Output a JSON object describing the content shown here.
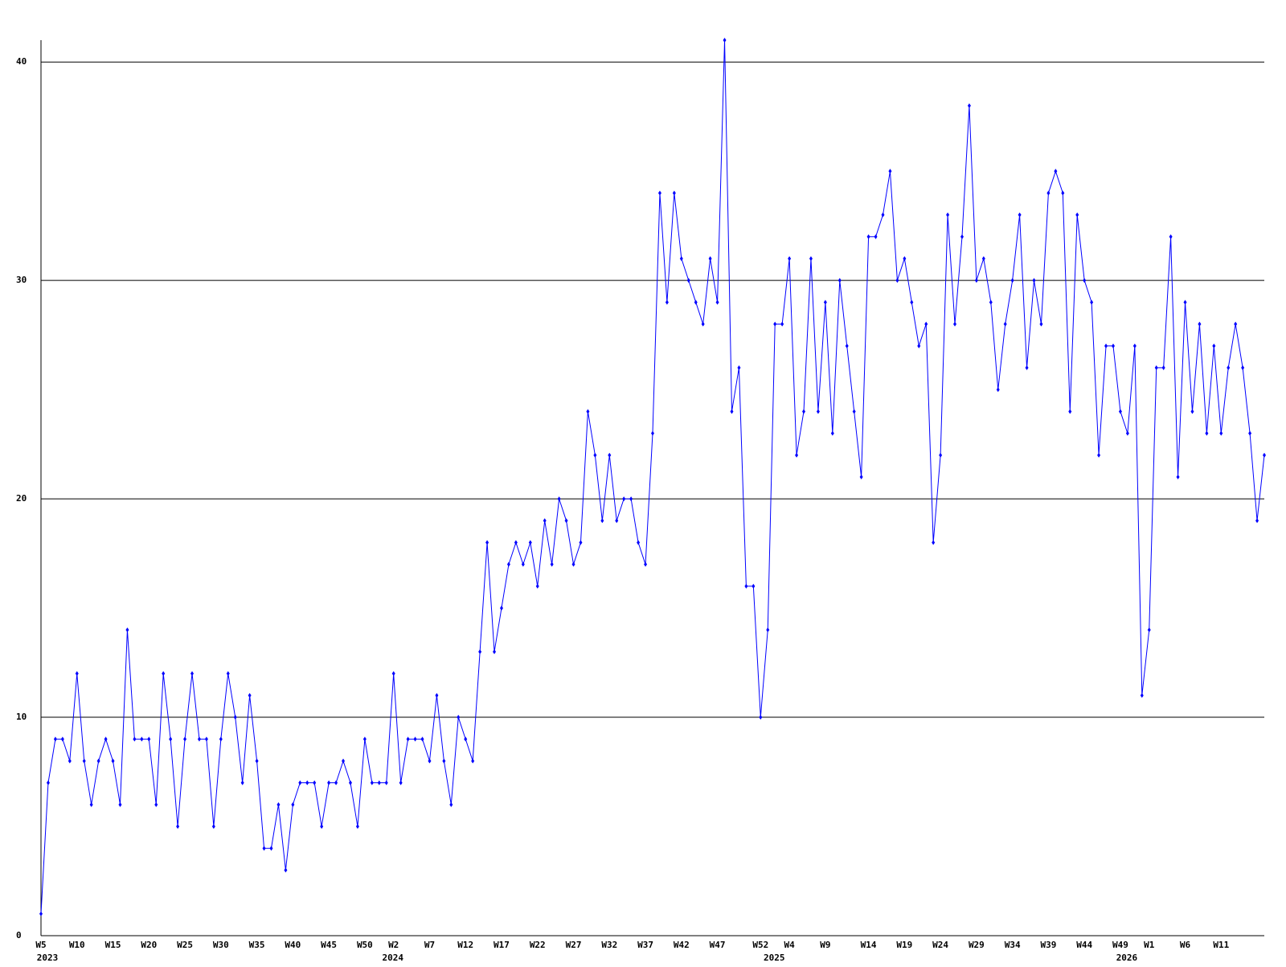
{
  "chart_data": {
    "type": "line",
    "categories": [
      "W5",
      null,
      null,
      null,
      null,
      "W10",
      null,
      null,
      null,
      null,
      "W15",
      null,
      null,
      null,
      null,
      "W20",
      null,
      null,
      null,
      null,
      "W25",
      null,
      null,
      null,
      null,
      "W30",
      null,
      null,
      null,
      null,
      "W35",
      null,
      null,
      null,
      null,
      "W40",
      null,
      null,
      null,
      null,
      "W45",
      null,
      null,
      null,
      null,
      "W50",
      null,
      null,
      null,
      "W2",
      null,
      null,
      null,
      null,
      "W7",
      null,
      null,
      null,
      null,
      "W12",
      null,
      null,
      null,
      null,
      "W17",
      null,
      null,
      null,
      null,
      "W22",
      null,
      null,
      null,
      null,
      "W27",
      null,
      null,
      null,
      null,
      "W32",
      null,
      null,
      null,
      null,
      "W37",
      null,
      null,
      null,
      null,
      "W42",
      null,
      null,
      null,
      null,
      "W47",
      null,
      null,
      null,
      null,
      null,
      "W52",
      null,
      null,
      null,
      "W4",
      null,
      null,
      null,
      null,
      "W9",
      null,
      null,
      null,
      null,
      null,
      "W14",
      null,
      null,
      null,
      null,
      "W19",
      null,
      null,
      null,
      null,
      "W24",
      null,
      null,
      null,
      null,
      "W29",
      null,
      null,
      null,
      null,
      "W34",
      null,
      null,
      null,
      null,
      "W39",
      null,
      null,
      null,
      null,
      "W44",
      null,
      null,
      null,
      null,
      "W49",
      null,
      null,
      null,
      "W1",
      null,
      null,
      null,
      null,
      "W6",
      null,
      null,
      null,
      null,
      "W11",
      null,
      null,
      null,
      null,
      null,
      null
    ],
    "year_labels": [
      "2023",
      null,
      null,
      null,
      null,
      null,
      null,
      null,
      null,
      null,
      null,
      null,
      null,
      null,
      null,
      null,
      null,
      null,
      null,
      null,
      null,
      null,
      null,
      null,
      null,
      null,
      null,
      null,
      null,
      null,
      null,
      null,
      null,
      null,
      null,
      null,
      null,
      null,
      null,
      null,
      null,
      null,
      null,
      null,
      null,
      null,
      null,
      null,
      "2024",
      null,
      null,
      null,
      null,
      null,
      null,
      null,
      null,
      null,
      null,
      null,
      null,
      null,
      null,
      null,
      null,
      null,
      null,
      null,
      null,
      null,
      null,
      null,
      null,
      null,
      null,
      null,
      null,
      null,
      null,
      null,
      null,
      null,
      null,
      null,
      null,
      null,
      null,
      null,
      null,
      null,
      null,
      null,
      null,
      null,
      null,
      null,
      null,
      null,
      null,
      null,
      null,
      "2025",
      null,
      null,
      null,
      null,
      null,
      null,
      null,
      null,
      null,
      null,
      null,
      null,
      null,
      null,
      null,
      null,
      null,
      null,
      null,
      null,
      null,
      null,
      null,
      null,
      null,
      null,
      null,
      null,
      null,
      null,
      null,
      null,
      null,
      null,
      null,
      null,
      null,
      null,
      null,
      null,
      null,
      null,
      null,
      null,
      null,
      null,
      null,
      null,
      "2026",
      null,
      null,
      null,
      null,
      null,
      null,
      null,
      null,
      null,
      null,
      null,
      null,
      null,
      null,
      null,
      null
    ],
    "series": [
      {
        "color": "#0000ff",
        "values": [
          1,
          7,
          9,
          9,
          8,
          12,
          8,
          6,
          8,
          9,
          8,
          6,
          14,
          9,
          9,
          9,
          6,
          12,
          9,
          5,
          9,
          12,
          9,
          9,
          5,
          9,
          12,
          10,
          7,
          11,
          8,
          4,
          4,
          6,
          3,
          6,
          7,
          7,
          7,
          5,
          7,
          7,
          8,
          7,
          5,
          9,
          7,
          7,
          7,
          12,
          7,
          9,
          9,
          9,
          8,
          11,
          8,
          6,
          10,
          9,
          8,
          13,
          18,
          13,
          15,
          17,
          18,
          17,
          18,
          16,
          19,
          17,
          20,
          19,
          17,
          18,
          24,
          22,
          19,
          22,
          19,
          20,
          20,
          18,
          17,
          23,
          34,
          29,
          34,
          31,
          30,
          29,
          28,
          31,
          29,
          41,
          24,
          26,
          16,
          16,
          10,
          14,
          28,
          28,
          31,
          22,
          24,
          31,
          24,
          29,
          23,
          30,
          27,
          24,
          21,
          32,
          32,
          33,
          35,
          30,
          31,
          29,
          27,
          28,
          18,
          22,
          33,
          28,
          32,
          38,
          30,
          31,
          29,
          25,
          28,
          30,
          33,
          26,
          30,
          28,
          34,
          35,
          34,
          24,
          33,
          30,
          29,
          22,
          27,
          27,
          24,
          23,
          27,
          11,
          14,
          26,
          26,
          32,
          21,
          29,
          24,
          28,
          23,
          27,
          23,
          26,
          28,
          26,
          23,
          19,
          22
        ]
      }
    ],
    "ylim": [
      0,
      41
    ],
    "yticks": [
      0,
      10,
      20,
      30,
      40
    ],
    "grid": true
  }
}
